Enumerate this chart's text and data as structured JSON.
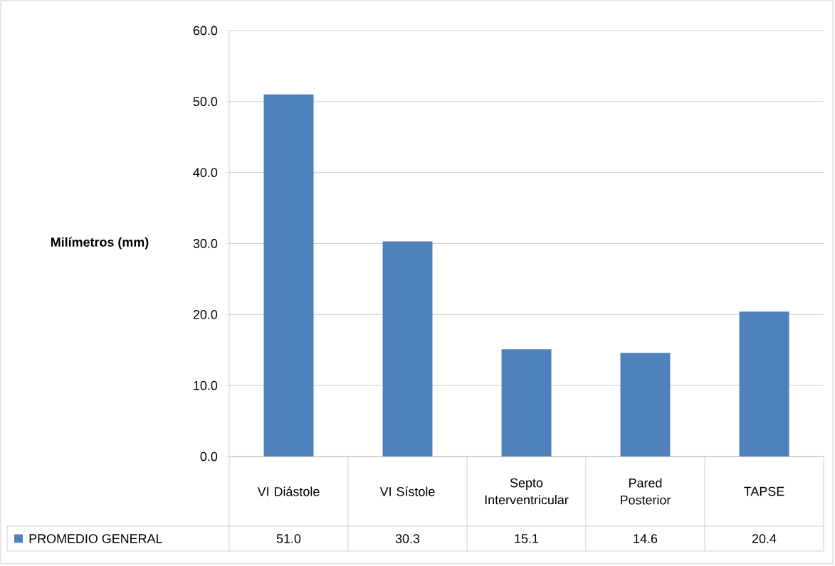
{
  "chart_data": {
    "type": "bar",
    "ylabel": "Milímetros (mm)",
    "categories": [
      "VI Diástole",
      "VI Sístole",
      "Septo Interventricular",
      "Pared Posterior",
      "TAPSE"
    ],
    "series": [
      {
        "name": "PROMEDIO GENERAL",
        "color": "#4f81bd",
        "values": [
          51.0,
          30.3,
          15.1,
          14.6,
          20.4
        ],
        "value_labels": [
          "51.0",
          "30.3",
          "15.1",
          "14.6",
          "20.4"
        ]
      }
    ],
    "ylim": [
      0,
      60
    ],
    "yticks": [
      {
        "value": 0,
        "label": "0.0"
      },
      {
        "value": 10,
        "label": "10.0"
      },
      {
        "value": 20,
        "label": "20.0"
      },
      {
        "value": 30,
        "label": "30.0"
      },
      {
        "value": 40,
        "label": "40.0"
      },
      {
        "value": 50,
        "label": "50.0"
      },
      {
        "value": 60,
        "label": "60.0"
      }
    ],
    "grid": "y",
    "legend": "bottom left"
  }
}
